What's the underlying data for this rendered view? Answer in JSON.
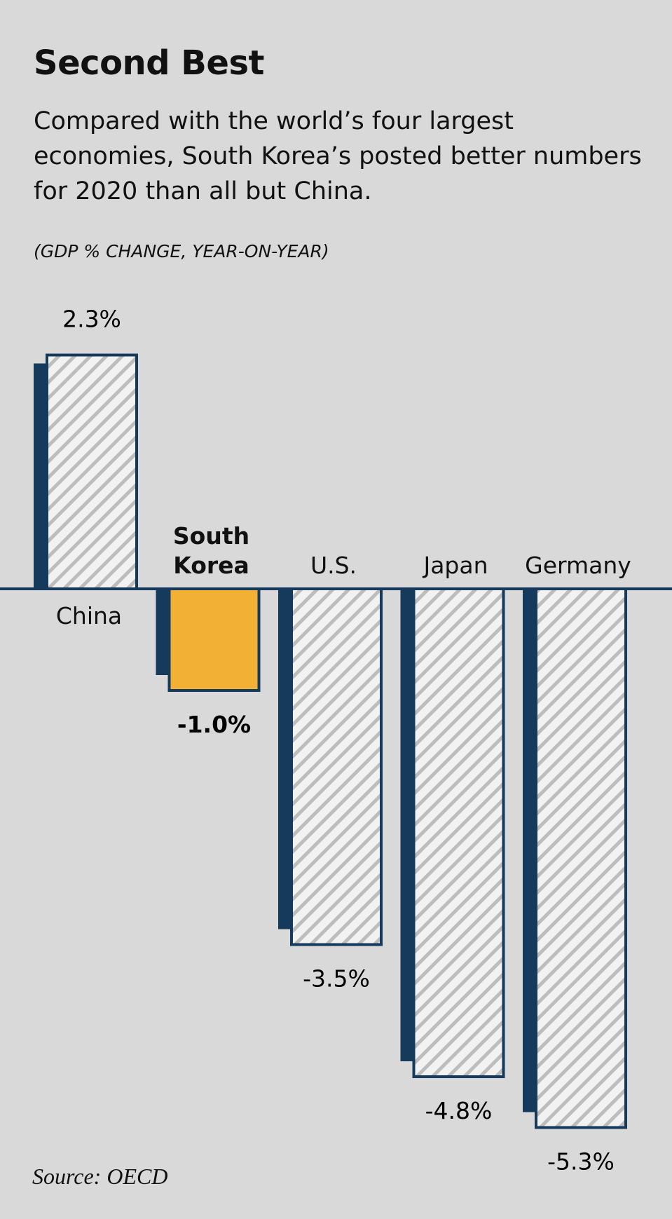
{
  "chart_data": {
    "type": "bar",
    "title": "Second Best",
    "subtitle": "Compared with the world’s four largest economies, South Korea’s posted better numbers for 2020 than all but China.",
    "unit_label": "(GDP % CHANGE, YEAR-ON-YEAR)",
    "source": "Source: OECD",
    "categories": [
      "China",
      "South Korea",
      "U.S.",
      "Japan",
      "Germany"
    ],
    "values": [
      2.3,
      -1.0,
      -3.5,
      -4.8,
      -5.3
    ],
    "value_labels": [
      "2.3%",
      "-1.0%",
      "-3.5%",
      "-4.8%",
      "-5.3%"
    ],
    "colors": [
      "#ffffff",
      "#f2b134",
      "#ffffff",
      "#ffffff",
      "#ffffff"
    ],
    "hatched": [
      true,
      false,
      true,
      true,
      true
    ],
    "edge_color": "#163a5c",
    "ylim": [
      -6,
      3
    ]
  }
}
